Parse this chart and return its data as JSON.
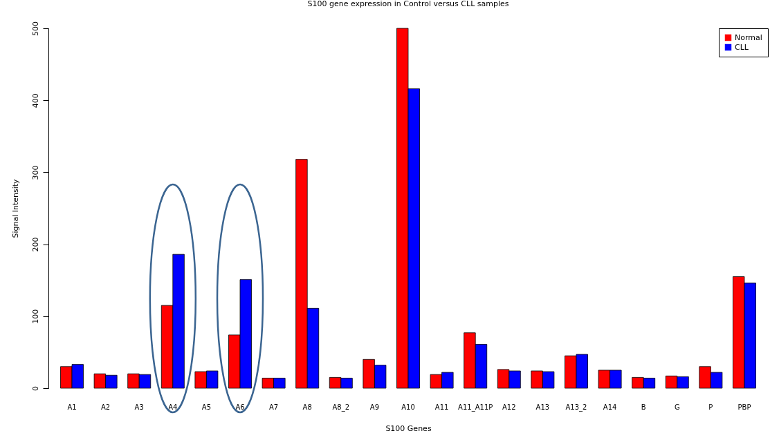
{
  "chart_data": {
    "type": "bar",
    "title": "S100 gene expression in Control versus CLL samples",
    "xlabel": "S100 Genes",
    "ylabel": "Signal Intensity",
    "categories": [
      "A1",
      "A2",
      "A3",
      "A4",
      "A5",
      "A6",
      "A7",
      "A8",
      "A8_2",
      "A9",
      "A10",
      "A11",
      "A11_A11P",
      "A12",
      "A13",
      "A13_2",
      "A14",
      "B",
      "G",
      "P",
      "PBP"
    ],
    "series": [
      {
        "name": "Normal",
        "color": "#ff0000",
        "values": [
          30,
          20,
          20,
          115,
          23,
          74,
          14,
          318,
          15,
          40,
          500,
          19,
          77,
          26,
          24,
          45,
          25,
          15,
          17,
          30,
          155
        ]
      },
      {
        "name": "CLL",
        "color": "#0000ff",
        "values": [
          33,
          18,
          19,
          186,
          24,
          151,
          14,
          111,
          14,
          32,
          416,
          22,
          61,
          24,
          23,
          47,
          25,
          14,
          16,
          22,
          146
        ]
      }
    ],
    "ylim": [
      0,
      500
    ],
    "yticks": [
      0,
      100,
      200,
      300,
      400,
      500
    ],
    "grid": false,
    "legend": "top right"
  }
}
